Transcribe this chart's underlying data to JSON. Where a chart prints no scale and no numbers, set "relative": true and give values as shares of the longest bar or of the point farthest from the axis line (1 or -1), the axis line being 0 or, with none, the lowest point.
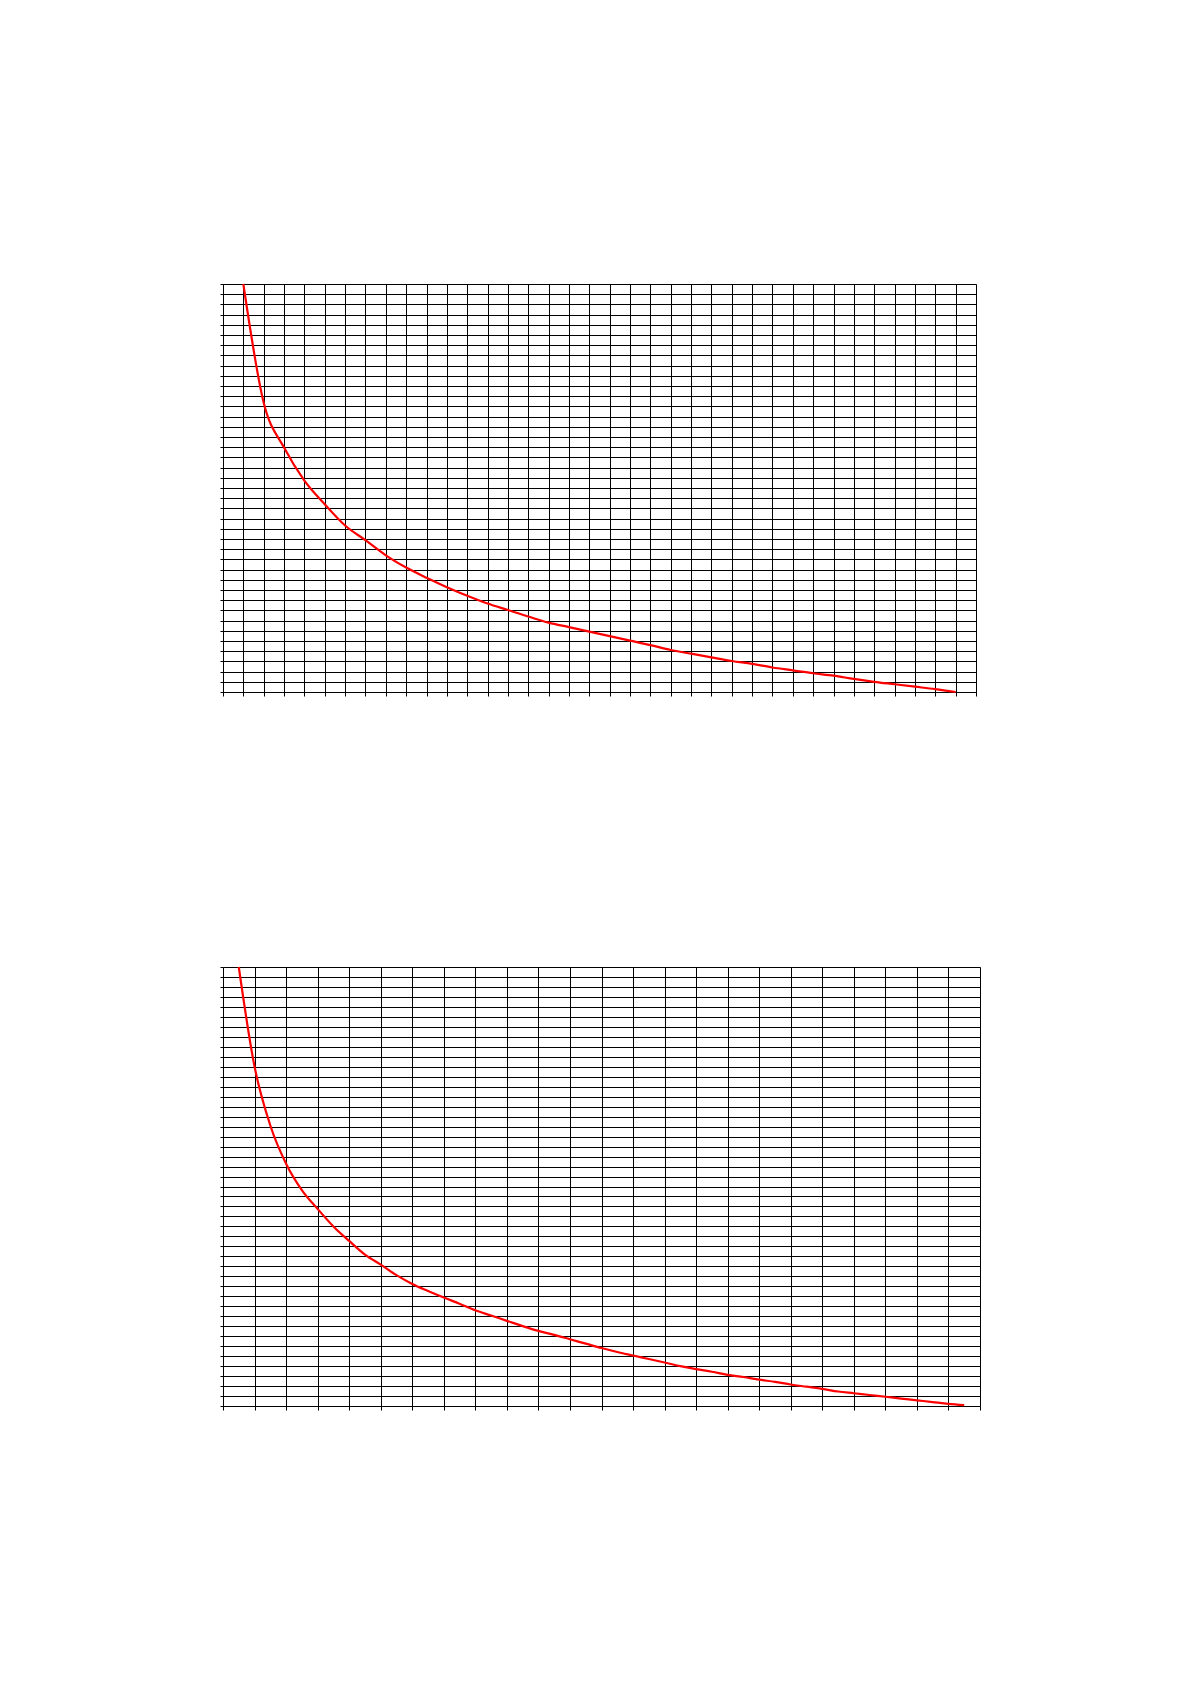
{
  "chart_data": [
    {
      "type": "line",
      "relative": true,
      "grid": true,
      "tick_labels": false,
      "categories": [
        null,
        null,
        null,
        null,
        null,
        null,
        null,
        null,
        null,
        null,
        null,
        null,
        null,
        null,
        null,
        null,
        null,
        null,
        null,
        null,
        null,
        null,
        null,
        null,
        null,
        null,
        null,
        null,
        null,
        null,
        null,
        null,
        null,
        null,
        null,
        null,
        null,
        null
      ],
      "series": [
        {
          "color": "#ff0000",
          "values": [
            null,
            1,
            0.709,
            0.599,
            0.518,
            0.46,
            0.408,
            0.372,
            0.335,
            0.305,
            0.28,
            0.257,
            0.236,
            0.217,
            0.201,
            0.185,
            0.17,
            0.159,
            0.148,
            0.137,
            0.126,
            0.115,
            0.103,
            0.094,
            0.085,
            0.076,
            0.069,
            0.06,
            0.053,
            0.046,
            0.04,
            0.032,
            0.025,
            0.019,
            0.013,
            0.007,
            0,
            null
          ]
        }
      ]
    },
    {
      "type": "line",
      "relative": true,
      "grid": true,
      "tick_labels": false,
      "categories": [
        null,
        null,
        null,
        null,
        null,
        null,
        null,
        null,
        null,
        null,
        null,
        null,
        null,
        null,
        null,
        null,
        null,
        null,
        null,
        null,
        null,
        null,
        null,
        null,
        null,
        null,
        null,
        null,
        null,
        null,
        null,
        null,
        null,
        null,
        null,
        null,
        null,
        null,
        null,
        null,
        null,
        null,
        null,
        null,
        null,
        null,
        null,
        null,
        null
      ],
      "series": [
        {
          "color": "#ff0000",
          "values": [
            null,
            1,
            0.773,
            0.639,
            0.552,
            0.492,
            0.449,
            0.409,
            0.376,
            0.345,
            0.322,
            0.298,
            0.278,
            0.262,
            0.247,
            0.233,
            0.218,
            0.206,
            0.194,
            0.182,
            0.171,
            0.162,
            0.152,
            0.142,
            0.132,
            0.123,
            0.115,
            0.107,
            0.099,
            0.091,
            0.084,
            0.078,
            0.071,
            0.066,
            0.06,
            0.055,
            0.049,
            0.044,
            0.039,
            0.033,
            0.029,
            0.025,
            0.021,
            0.017,
            0.013,
            0.009,
            0.005,
            0.002,
            null
          ]
        }
      ]
    }
  ]
}
